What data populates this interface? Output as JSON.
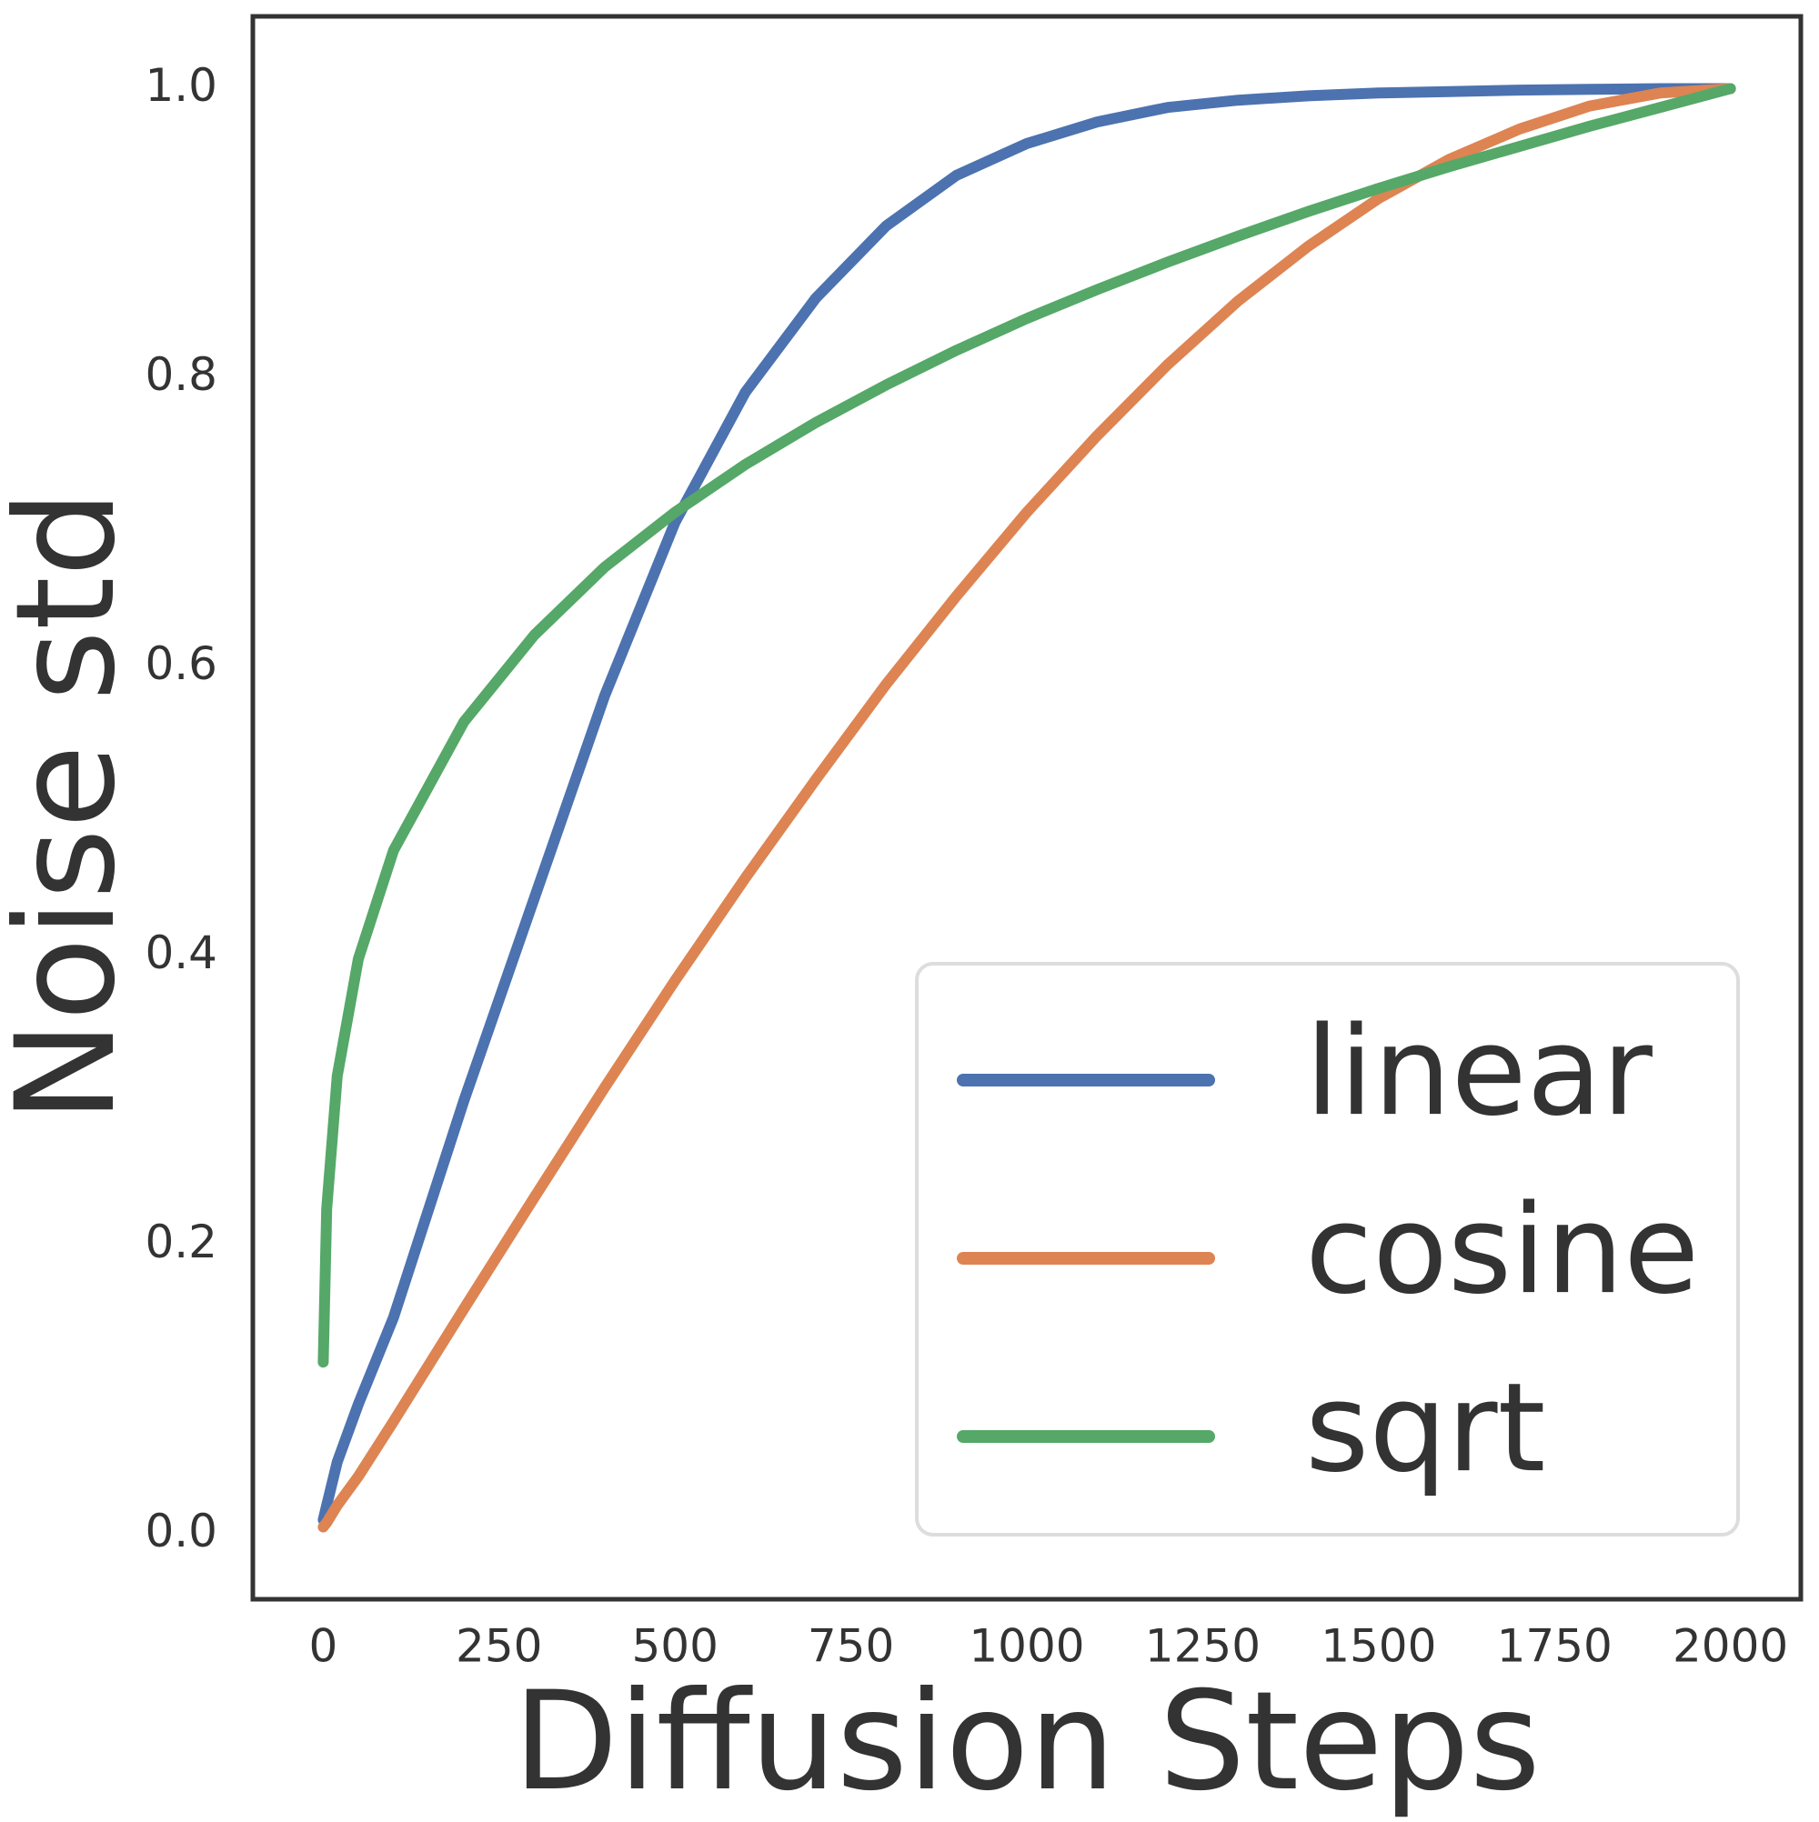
{
  "chart_data": {
    "type": "line",
    "x_label": "Diffusion Steps",
    "y_label": "Noise std",
    "x": [
      0,
      5,
      20,
      50,
      100,
      200,
      300,
      400,
      500,
      600,
      700,
      800,
      900,
      1000,
      1100,
      1200,
      1300,
      1400,
      1500,
      1600,
      1700,
      1800,
      1900,
      2000
    ],
    "series": [
      {
        "name": "linear",
        "color": "#4c72b0",
        "values": [
          0.01,
          0.02,
          0.05,
          0.09,
          0.15,
          0.3,
          0.44,
          0.58,
          0.7,
          0.79,
          0.855,
          0.905,
          0.94,
          0.962,
          0.977,
          0.987,
          0.992,
          0.995,
          0.997,
          0.998,
          0.999,
          0.9995,
          1.0,
          1.0
        ]
      },
      {
        "name": "cosine",
        "color": "#dd8452",
        "values": [
          0.005,
          0.008,
          0.02,
          0.04,
          0.078,
          0.156,
          0.233,
          0.309,
          0.383,
          0.454,
          0.522,
          0.588,
          0.649,
          0.707,
          0.76,
          0.809,
          0.853,
          0.891,
          0.924,
          0.951,
          0.972,
          0.988,
          0.997,
          1.0
        ]
      },
      {
        "name": "sqrt",
        "color": "#55a868",
        "values": [
          0.119,
          0.225,
          0.317,
          0.398,
          0.473,
          0.562,
          0.622,
          0.669,
          0.707,
          0.74,
          0.769,
          0.795,
          0.819,
          0.841,
          0.861,
          0.88,
          0.898,
          0.915,
          0.931,
          0.946,
          0.96,
          0.974,
          0.987,
          1.0
        ]
      }
    ],
    "xlim": [
      -100,
      2100
    ],
    "ylim": [
      -0.045,
      1.05
    ],
    "xticks": [
      0,
      250,
      500,
      750,
      1000,
      1250,
      1500,
      1750,
      2000
    ],
    "yticks": [
      {
        "value": 0,
        "label": "0.0"
      },
      {
        "value": 0.2,
        "label": "0.2"
      },
      {
        "value": 0.4,
        "label": "0.4"
      },
      {
        "value": 0.6,
        "label": "0.6"
      },
      {
        "value": 0.8,
        "label": "0.8"
      },
      {
        "value": 1,
        "label": "1.0"
      }
    ],
    "grid": false,
    "legend": "lower right"
  }
}
